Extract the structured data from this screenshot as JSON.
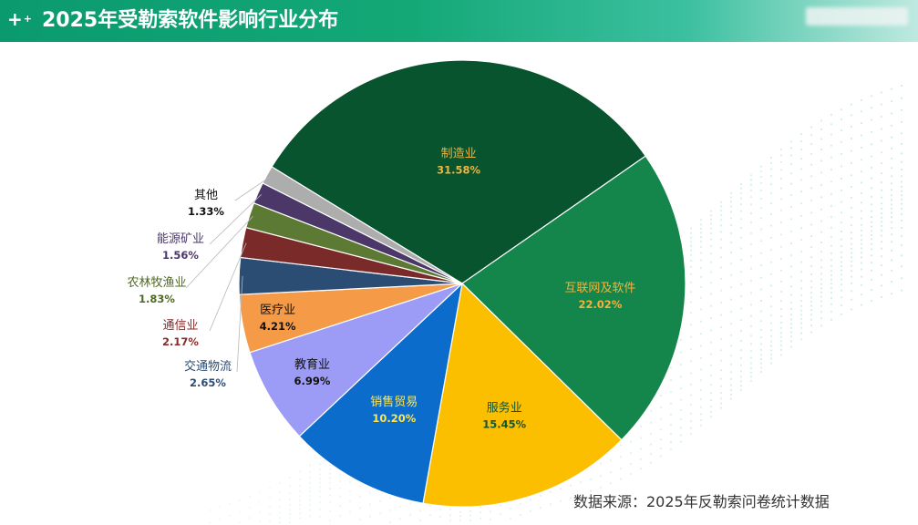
{
  "header": {
    "title": "2025年受勒索软件影响行业分布"
  },
  "footer": {
    "source": "数据来源：2025年反勒索问卷统计数据"
  },
  "chart_data": {
    "type": "pie",
    "title": "2025年受勒索软件影响行业分布",
    "slices": [
      {
        "label": "制造业",
        "value": 31.58,
        "display": "31.58%",
        "color": "#07542e",
        "label_color": "#f3b33d"
      },
      {
        "label": "互联网及软件",
        "value": 22.02,
        "display": "22.02%",
        "color": "#14864c",
        "label_color": "#f3b33d"
      },
      {
        "label": "服务业",
        "value": 15.45,
        "display": "15.45%",
        "color": "#fcbf00",
        "label_color": "#14542f"
      },
      {
        "label": "销售贸易",
        "value": 10.2,
        "display": "10.20%",
        "color": "#0b6ccb",
        "label_color": "#ffe44d"
      },
      {
        "label": "教育业",
        "value": 6.99,
        "display": "6.99%",
        "color": "#9c9cf7",
        "label_color": "#111111"
      },
      {
        "label": "医疗业",
        "value": 4.21,
        "display": "4.21%",
        "color": "#f59a46",
        "label_color": "#111111"
      },
      {
        "label": "交通物流",
        "value": 2.65,
        "display": "2.65%",
        "color": "#2c4d73",
        "label_color": "#2c4d73"
      },
      {
        "label": "通信业",
        "value": 2.17,
        "display": "2.17%",
        "color": "#7b2a2a",
        "label_color": "#8b2a2a"
      },
      {
        "label": "农林牧渔业",
        "value": 1.83,
        "display": "1.83%",
        "color": "#5d7a34",
        "label_color": "#4f6a26"
      },
      {
        "label": "能源矿业",
        "value": 1.56,
        "display": "1.56%",
        "color": "#4b3768",
        "label_color": "#4b3768"
      },
      {
        "label": "其他",
        "value": 1.33,
        "display": "1.33%",
        "color": "#adadad",
        "label_color": "#111111"
      }
    ]
  }
}
